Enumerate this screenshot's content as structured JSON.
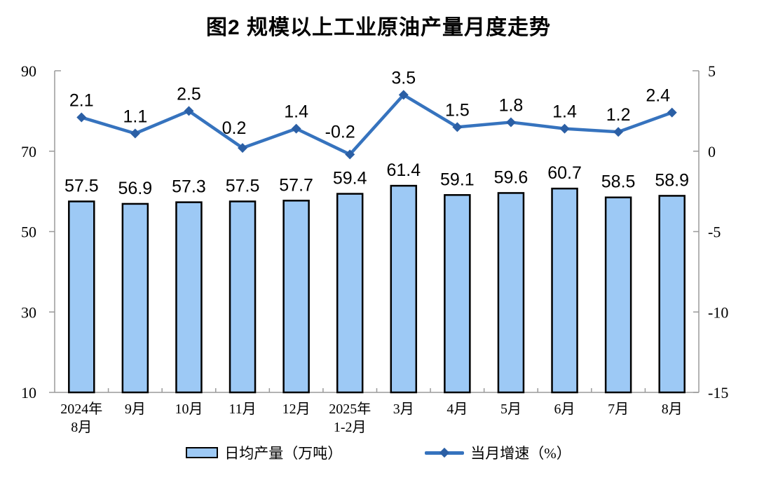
{
  "title": "图2 规模以上工业原油产量月度走势",
  "chart_data": {
    "type": "combo",
    "title": "图2 规模以上工业原油产量月度走势",
    "categories": [
      [
        "2024年",
        "8月"
      ],
      [
        "9月"
      ],
      [
        "10月"
      ],
      [
        "11月"
      ],
      [
        "12月"
      ],
      [
        "2025年",
        "1-2月"
      ],
      [
        "3月"
      ],
      [
        "4月"
      ],
      [
        "5月"
      ],
      [
        "6月"
      ],
      [
        "7月"
      ],
      [
        "8月"
      ]
    ],
    "series": [
      {
        "name": "日均产量（万吨）",
        "type": "bar",
        "axis": "left",
        "values": [
          57.5,
          56.9,
          57.3,
          57.5,
          57.7,
          59.4,
          61.4,
          59.1,
          59.6,
          60.7,
          58.5,
          58.9
        ]
      },
      {
        "name": "当月增速（%）",
        "type": "line",
        "axis": "right",
        "values": [
          2.1,
          1.1,
          2.5,
          0.2,
          1.4,
          -0.2,
          3.5,
          1.5,
          1.8,
          1.4,
          1.2,
          2.4
        ]
      }
    ],
    "left_axis": {
      "min": 10,
      "max": 90,
      "ticks": [
        90,
        70,
        50,
        30,
        10
      ]
    },
    "right_axis": {
      "min": -15,
      "max": 5,
      "ticks": [
        5,
        0,
        -5,
        -10,
        -15
      ]
    },
    "legend": [
      {
        "label": "日均产量（万吨）",
        "swatch": "bar"
      },
      {
        "label": "当月增速（%）",
        "swatch": "line"
      }
    ],
    "legend_position": "bottom",
    "grid": false,
    "data_labels": true,
    "colors": {
      "bar_fill": "#9DC9F5",
      "bar_stroke": "#000000",
      "line": "#3673BE",
      "marker": "#2B5FA5",
      "axis": "#9A9A9A",
      "text": "#000000",
      "background": "#FFFFFF"
    }
  }
}
